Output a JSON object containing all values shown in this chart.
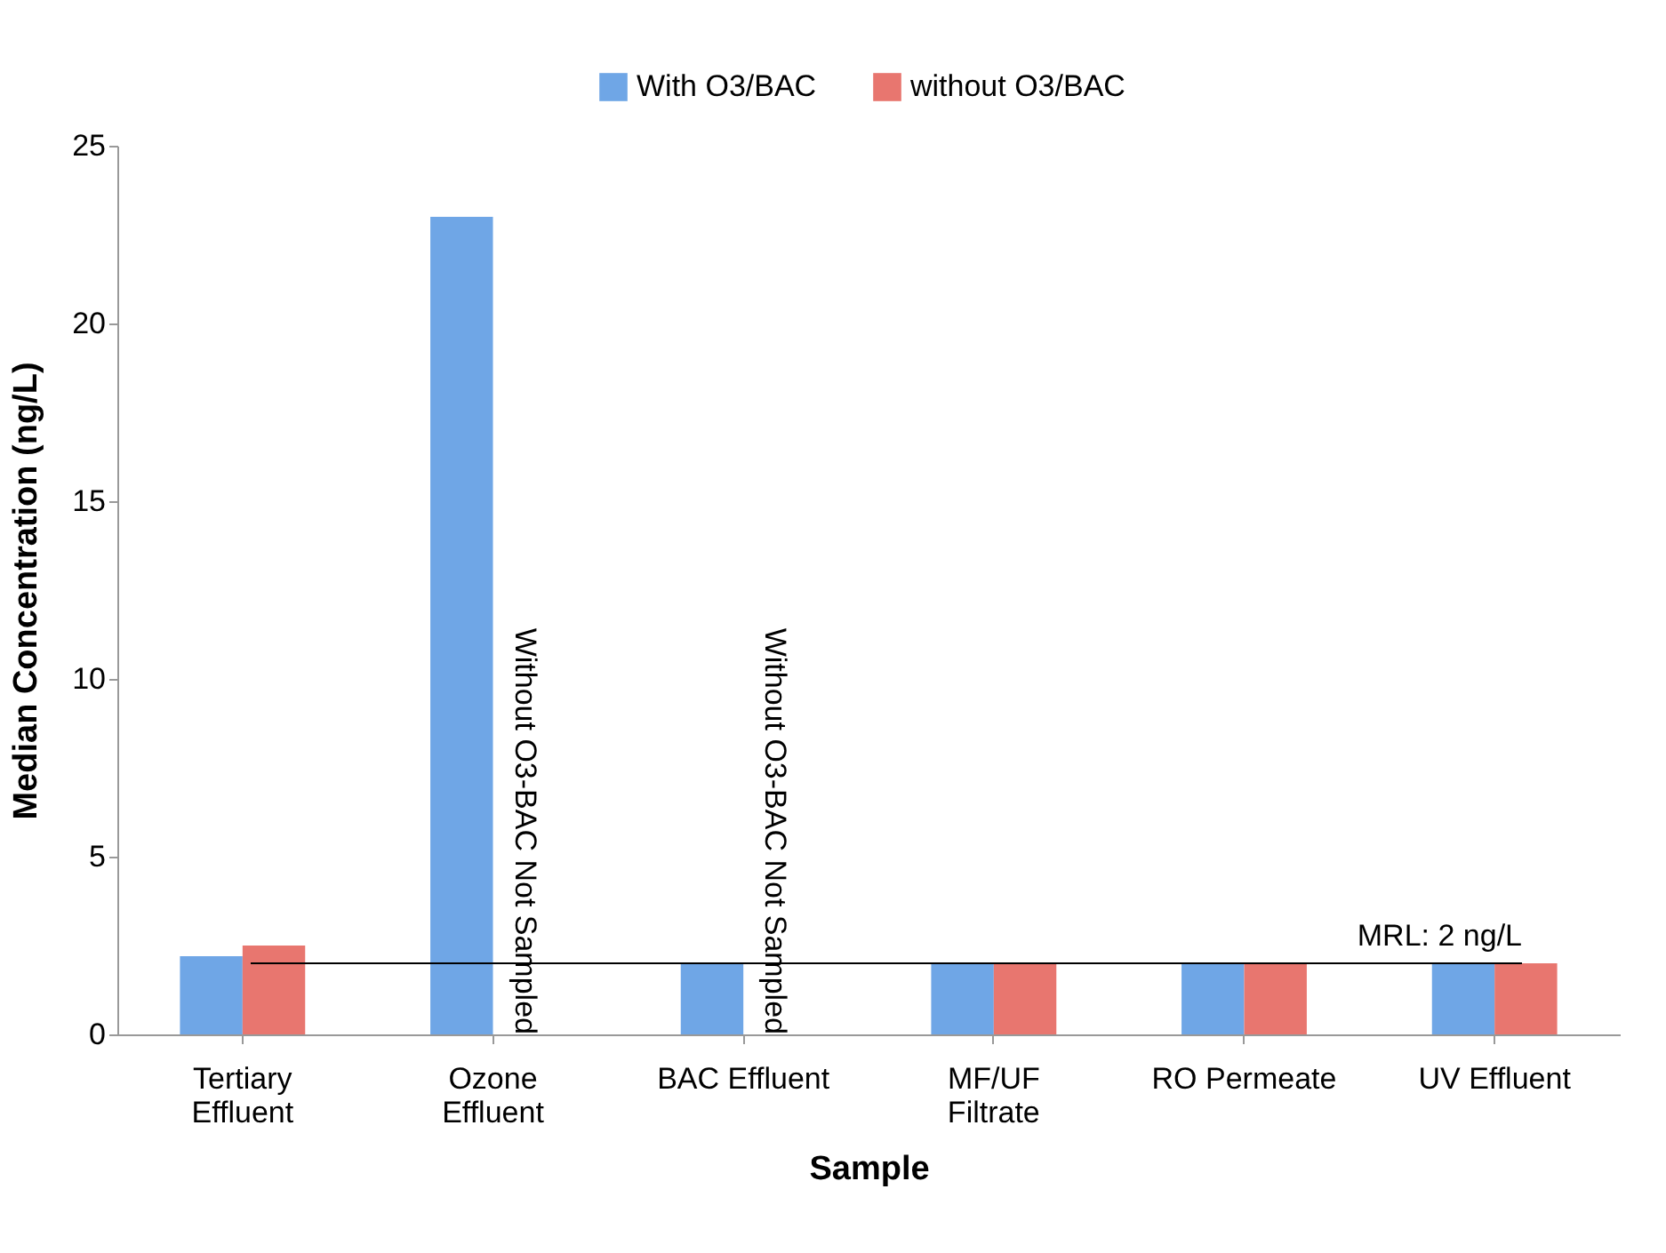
{
  "chart_data": {
    "type": "bar",
    "xlabel": "Sample",
    "ylabel": "Median Concentration (ng/L)",
    "categories": [
      "Tertiary Effluent",
      "Ozone Effluent",
      "BAC Effluent",
      "MF/UF Filtrate",
      "RO Permeate",
      "UV Effluent"
    ],
    "series": [
      {
        "name": "With O3/BAC",
        "color": "#6fa6e6",
        "values": [
          2.2,
          23.0,
          2.0,
          2.0,
          2.0,
          2.0
        ]
      },
      {
        "name": "without O3/BAC",
        "color": "#e8766f",
        "values": [
          2.5,
          null,
          null,
          2.0,
          2.0,
          2.0
        ]
      }
    ],
    "ylim": [
      0,
      25
    ],
    "yticks": [
      0,
      5,
      10,
      15,
      20,
      25
    ],
    "grid": false,
    "legend": "top",
    "ref_lines": [
      {
        "axis": "y",
        "value": 2,
        "label": "MRL: 2 ng/L",
        "color": "#000000"
      }
    ],
    "annotations": [
      {
        "text": "Without O3-BAC Not Sampled",
        "x": "Ozone Effluent",
        "y": 0
      },
      {
        "text": "Without O3-BAC Not Sampled",
        "x": "BAC Effluent",
        "y": 0
      }
    ]
  }
}
